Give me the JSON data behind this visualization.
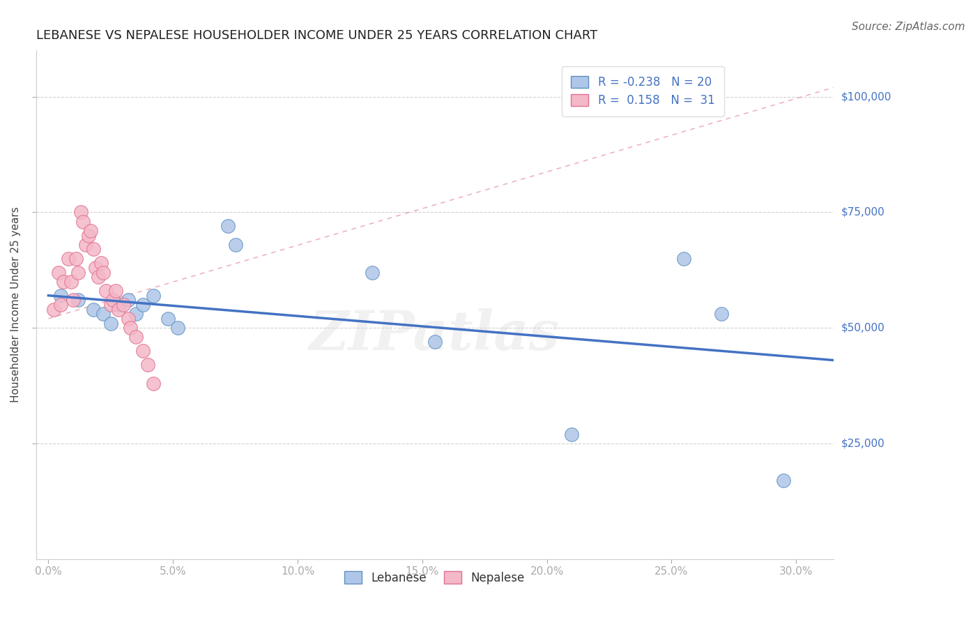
{
  "title": "LEBANESE VS NEPALESE HOUSEHOLDER INCOME UNDER 25 YEARS CORRELATION CHART",
  "source": "Source: ZipAtlas.com",
  "ylabel": "Householder Income Under 25 years",
  "xlabel_ticks": [
    "0.0%",
    "5.0%",
    "10.0%",
    "15.0%",
    "20.0%",
    "25.0%",
    "30.0%"
  ],
  "xlabel_vals": [
    0.0,
    0.05,
    0.1,
    0.15,
    0.2,
    0.25,
    0.3
  ],
  "ylabel_ticks": [
    "$25,000",
    "$50,000",
    "$75,000",
    "$100,000"
  ],
  "ylabel_vals": [
    25000,
    50000,
    75000,
    100000
  ],
  "ylim": [
    0,
    110000
  ],
  "xlim": [
    -0.005,
    0.315
  ],
  "watermark": "ZIPatlas",
  "legend_r_lebanese": "-0.238",
  "legend_n_lebanese": "20",
  "legend_r_nepalese": "0.158",
  "legend_n_nepalese": "31",
  "lebanese_x": [
    0.005,
    0.012,
    0.018,
    0.022,
    0.025,
    0.028,
    0.032,
    0.035,
    0.038,
    0.042,
    0.048,
    0.052,
    0.072,
    0.075,
    0.13,
    0.155,
    0.21,
    0.255,
    0.27,
    0.295
  ],
  "lebanese_y": [
    57000,
    56000,
    54000,
    53000,
    51000,
    55000,
    56000,
    53000,
    55000,
    57000,
    52000,
    50000,
    72000,
    68000,
    62000,
    47000,
    27000,
    65000,
    53000,
    17000
  ],
  "nepalese_x": [
    0.002,
    0.004,
    0.005,
    0.006,
    0.008,
    0.009,
    0.01,
    0.011,
    0.012,
    0.013,
    0.014,
    0.015,
    0.016,
    0.017,
    0.018,
    0.019,
    0.02,
    0.021,
    0.022,
    0.023,
    0.025,
    0.026,
    0.027,
    0.028,
    0.03,
    0.032,
    0.033,
    0.035,
    0.038,
    0.04,
    0.042
  ],
  "nepalese_y": [
    54000,
    62000,
    55000,
    60000,
    65000,
    60000,
    56000,
    65000,
    62000,
    75000,
    73000,
    68000,
    70000,
    71000,
    67000,
    63000,
    61000,
    64000,
    62000,
    58000,
    55000,
    56000,
    58000,
    54000,
    55000,
    52000,
    50000,
    48000,
    45000,
    42000,
    38000
  ],
  "lebanese_color": "#aec6e8",
  "nepalese_color": "#f4b8c8",
  "lebanese_edge_color": "#6090c0",
  "nepalese_edge_color": "#e07090",
  "lebanese_line_color": "#4472c4",
  "nepalese_line_color": "#e08090",
  "title_fontsize": 13,
  "source_fontsize": 11,
  "background_color": "#ffffff",
  "grid_color": "#cccccc",
  "leb_trend_x0": 0.0,
  "leb_trend_x1": 0.315,
  "leb_trend_y0": 57000,
  "leb_trend_y1": 43000,
  "nep_trend_x0": 0.0,
  "nep_trend_x1": 0.315,
  "nep_trend_y0": 52000,
  "nep_trend_y1": 102000
}
